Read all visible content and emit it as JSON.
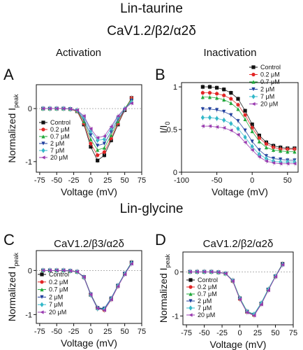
{
  "figure": {
    "title": "Lin-taurine",
    "subtitle": "CaV1.2/β2/α2δ",
    "section_title": "Lin-glycine"
  },
  "series_styles": [
    {
      "name": "Control",
      "color": "#111111",
      "marker": "square"
    },
    {
      "name": "0.2 μM",
      "color": "#e32626",
      "marker": "circle"
    },
    {
      "name": "0.7 μM",
      "color": "#1fa83a",
      "marker": "triangle-up"
    },
    {
      "name": "2 μM",
      "color": "#1f3f9e",
      "marker": "triangle-down"
    },
    {
      "name": "7 μM",
      "color": "#33b8c9",
      "marker": "diamond"
    },
    {
      "name": "20 μM",
      "color": "#9a3bb0",
      "marker": "triangle-left"
    }
  ],
  "chart_data": [
    {
      "panel": "A",
      "type": "line",
      "title": "Activation",
      "xlabel": "Voltage (mV)",
      "ylabel": "Normalized I",
      "ylabel_sub": "peak",
      "xlim": [
        -80,
        75
      ],
      "ylim": [
        -1.2,
        0.45
      ],
      "xticks": [
        -75,
        -50,
        -25,
        0,
        25,
        50,
        75
      ],
      "yticks": [
        -1,
        0
      ],
      "legend": "lower-left",
      "x": [
        -70,
        -60,
        -50,
        -40,
        -30,
        -20,
        -10,
        0,
        10,
        20,
        30,
        40,
        50,
        60
      ],
      "series": [
        {
          "name": "Control",
          "values": [
            0,
            0,
            0,
            0,
            -0.01,
            -0.05,
            -0.3,
            -0.72,
            -0.98,
            -0.88,
            -0.6,
            -0.3,
            -0.03,
            0.2
          ]
        },
        {
          "name": "0.2 μM",
          "values": [
            0,
            0,
            0,
            0,
            -0.01,
            -0.05,
            -0.28,
            -0.66,
            -0.88,
            -0.82,
            -0.56,
            -0.28,
            -0.02,
            0.2
          ]
        },
        {
          "name": "0.7 μM",
          "values": [
            0,
            0,
            0,
            0,
            -0.01,
            -0.04,
            -0.24,
            -0.58,
            -0.78,
            -0.74,
            -0.5,
            -0.24,
            0,
            0.18
          ]
        },
        {
          "name": "2 μM",
          "values": [
            0,
            0,
            0,
            0,
            -0.01,
            -0.04,
            -0.2,
            -0.5,
            -0.7,
            -0.66,
            -0.44,
            -0.2,
            -0.03,
            0.15
          ]
        },
        {
          "name": "7 μM",
          "values": [
            0,
            0,
            0,
            0,
            -0.01,
            -0.03,
            -0.16,
            -0.42,
            -0.6,
            -0.58,
            -0.38,
            -0.16,
            0,
            0.12
          ]
        },
        {
          "name": "20 μM",
          "values": [
            0,
            0,
            0,
            0,
            -0.01,
            -0.03,
            -0.14,
            -0.38,
            -0.55,
            -0.52,
            -0.34,
            -0.14,
            0,
            0.1
          ]
        }
      ]
    },
    {
      "panel": "B",
      "type": "line",
      "title": "Inactivation",
      "xlabel": "Voltage (mV)",
      "ylabel": "I/I",
      "ylabel_sub": "0",
      "xlim": [
        -100,
        65
      ],
      "ylim": [
        0,
        1.05
      ],
      "xticks": [
        -100,
        -50,
        0,
        50
      ],
      "yticks": [
        0,
        0.5,
        1
      ],
      "legend": "top-right",
      "x": [
        -70,
        -60,
        -50,
        -40,
        -30,
        -20,
        -10,
        0,
        10,
        20,
        30,
        40,
        50,
        60
      ],
      "series": [
        {
          "name": "Control",
          "values": [
            1.0,
            1.0,
            0.99,
            0.97,
            0.93,
            0.86,
            0.72,
            0.56,
            0.43,
            0.35,
            0.31,
            0.29,
            0.28,
            0.28
          ]
        },
        {
          "name": "0.2 μM",
          "values": [
            0.93,
            0.93,
            0.92,
            0.9,
            0.86,
            0.79,
            0.67,
            0.52,
            0.4,
            0.33,
            0.29,
            0.27,
            0.27,
            0.27
          ]
        },
        {
          "name": "0.7 μM",
          "values": [
            0.88,
            0.88,
            0.87,
            0.85,
            0.81,
            0.74,
            0.62,
            0.48,
            0.36,
            0.29,
            0.26,
            0.25,
            0.24,
            0.24
          ]
        },
        {
          "name": "2 μM",
          "values": [
            0.74,
            0.74,
            0.73,
            0.71,
            0.67,
            0.6,
            0.49,
            0.36,
            0.26,
            0.19,
            0.16,
            0.15,
            0.14,
            0.14
          ]
        },
        {
          "name": "7 μM",
          "values": [
            0.64,
            0.64,
            0.63,
            0.61,
            0.57,
            0.51,
            0.41,
            0.3,
            0.21,
            0.16,
            0.13,
            0.12,
            0.12,
            0.12
          ]
        },
        {
          "name": "20 μM",
          "values": [
            0.54,
            0.54,
            0.53,
            0.52,
            0.49,
            0.44,
            0.35,
            0.26,
            0.18,
            0.13,
            0.11,
            0.1,
            0.1,
            0.1
          ]
        }
      ]
    },
    {
      "panel": "C",
      "type": "line",
      "title": "CaV1.2/β3/α2δ",
      "xlabel": "Voltage (mV)",
      "ylabel": "Normalized I",
      "ylabel_sub": "peak",
      "xlim": [
        -80,
        75
      ],
      "ylim": [
        -1.2,
        0.45
      ],
      "xticks": [
        -75,
        -50,
        -25,
        0,
        25,
        50,
        75
      ],
      "yticks": [
        -1,
        0
      ],
      "legend": "lower-left",
      "x": [
        -70,
        -60,
        -50,
        -40,
        -30,
        -20,
        -10,
        0,
        10,
        20,
        30,
        40,
        50,
        60
      ],
      "series": [
        {
          "name": "Control",
          "values": [
            0,
            0,
            0,
            0,
            -0.01,
            -0.03,
            -0.15,
            -0.55,
            -0.85,
            -0.88,
            -0.65,
            -0.35,
            -0.08,
            0.18
          ]
        },
        {
          "name": "0.2 μM",
          "values": [
            0,
            0,
            0,
            0,
            -0.01,
            -0.03,
            -0.16,
            -0.55,
            -0.86,
            -0.9,
            -0.66,
            -0.36,
            -0.08,
            0.17
          ]
        },
        {
          "name": "0.7 μM",
          "values": [
            0,
            0,
            0,
            0,
            -0.01,
            -0.03,
            -0.14,
            -0.53,
            -0.84,
            -0.87,
            -0.64,
            -0.34,
            -0.07,
            0.18
          ]
        },
        {
          "name": "2 μM",
          "values": [
            0,
            0,
            0,
            0,
            -0.01,
            -0.03,
            -0.15,
            -0.54,
            -0.85,
            -0.86,
            -0.63,
            -0.34,
            -0.07,
            0.17
          ]
        },
        {
          "name": "7 μM",
          "values": [
            0,
            0,
            0,
            0,
            -0.01,
            -0.03,
            -0.16,
            -0.56,
            -0.87,
            -0.88,
            -0.65,
            -0.35,
            -0.08,
            0.16
          ]
        },
        {
          "name": "20 μM",
          "values": [
            0,
            0,
            0,
            0,
            -0.01,
            -0.03,
            -0.15,
            -0.55,
            -0.86,
            -0.9,
            -0.66,
            -0.36,
            -0.09,
            0.15
          ]
        }
      ]
    },
    {
      "panel": "D",
      "type": "line",
      "title": "CaV1.2/β2/α2δ",
      "xlabel": "Voltage (mV)",
      "ylabel": "Normalized I",
      "ylabel_sub": "peak",
      "xlim": [
        -80,
        75
      ],
      "ylim": [
        -1.2,
        0.45
      ],
      "xticks": [
        -75,
        -50,
        -25,
        0,
        25,
        50,
        75
      ],
      "yticks": [
        -1,
        0
      ],
      "legend": "lower-left",
      "x": [
        -70,
        -60,
        -50,
        -40,
        -30,
        -20,
        -10,
        0,
        10,
        20,
        30,
        40,
        50,
        60
      ],
      "series": [
        {
          "name": "Control",
          "values": [
            0,
            0,
            0,
            0,
            -0.01,
            -0.04,
            -0.2,
            -0.6,
            -0.9,
            -0.97,
            -0.72,
            -0.4,
            -0.1,
            0.18
          ]
        },
        {
          "name": "0.2 μM",
          "values": [
            0,
            0,
            0,
            0,
            -0.01,
            -0.04,
            -0.21,
            -0.62,
            -0.91,
            -0.98,
            -0.73,
            -0.41,
            -0.11,
            0.17
          ]
        },
        {
          "name": "0.7 μM",
          "values": [
            0,
            0,
            0,
            0,
            -0.01,
            -0.04,
            -0.19,
            -0.59,
            -0.89,
            -0.96,
            -0.71,
            -0.39,
            -0.1,
            0.18
          ]
        },
        {
          "name": "2 μM",
          "values": [
            0,
            0,
            0,
            0,
            -0.01,
            -0.04,
            -0.2,
            -0.61,
            -0.9,
            -0.97,
            -0.72,
            -0.4,
            -0.1,
            0.17
          ]
        },
        {
          "name": "7 μM",
          "values": [
            0,
            0,
            0,
            0,
            -0.01,
            -0.04,
            -0.2,
            -0.6,
            -0.9,
            -0.96,
            -0.71,
            -0.4,
            -0.1,
            0.16
          ]
        },
        {
          "name": "20 μM",
          "values": [
            0,
            0,
            0,
            0,
            -0.01,
            -0.04,
            -0.21,
            -0.62,
            -0.92,
            -0.99,
            -0.74,
            -0.42,
            -0.11,
            0.16
          ]
        }
      ]
    }
  ]
}
